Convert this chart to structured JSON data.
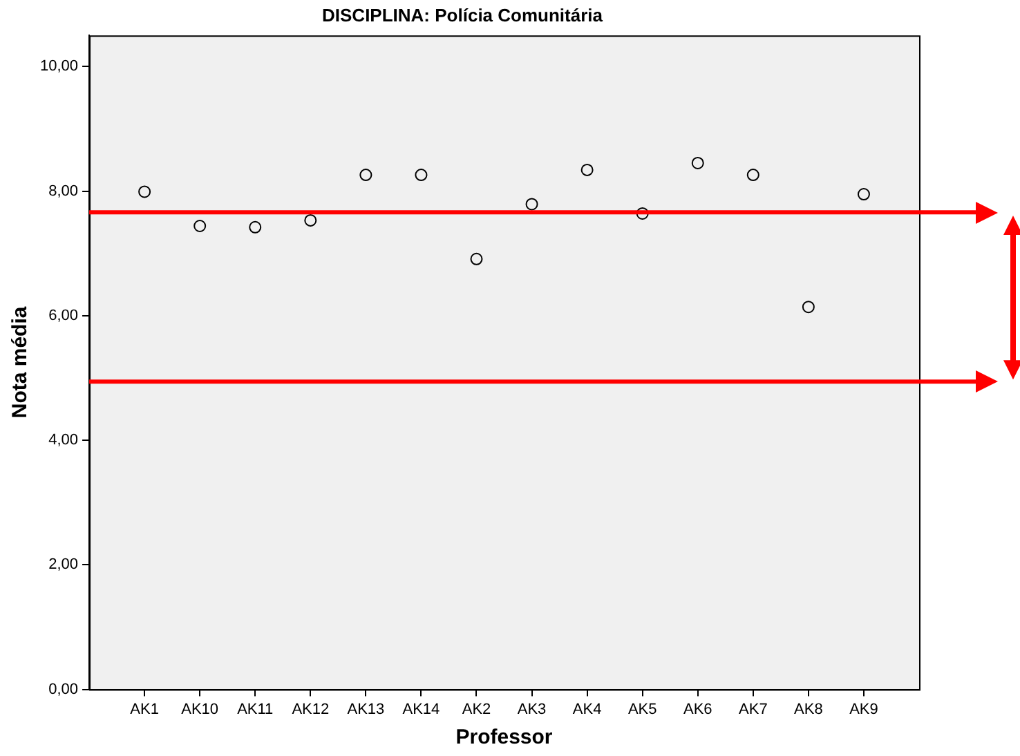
{
  "chart_data": {
    "type": "scatter",
    "title": "DISCIPLINA: Polícia Comunitária",
    "xlabel": "Professor",
    "ylabel": "Nota média",
    "categories": [
      "AK1",
      "AK10",
      "AK11",
      "AK12",
      "AK13",
      "AK14",
      "AK2",
      "AK3",
      "AK4",
      "AK5",
      "AK6",
      "AK7",
      "AK8",
      "AK9"
    ],
    "series": [
      {
        "color": "#000000",
        "values": [
          7.99,
          7.44,
          7.42,
          7.53,
          8.26,
          8.26,
          6.91,
          7.79,
          8.34,
          7.64,
          8.45,
          8.26,
          6.14,
          7.95
        ]
      }
    ],
    "ylim": [
      0,
      10.5
    ],
    "yticks": [
      {
        "value": 0,
        "label": "0,00"
      },
      {
        "value": 2,
        "label": "2,00"
      },
      {
        "value": 4,
        "label": "4,00"
      },
      {
        "value": 6,
        "label": "6,00"
      },
      {
        "value": 8,
        "label": "8,00"
      },
      {
        "value": 10,
        "label": "10,00"
      }
    ],
    "ref_lines": [
      {
        "axis": "y",
        "value": 7.66,
        "color": "#ff0000"
      },
      {
        "axis": "y",
        "value": 4.94,
        "color": "#ff0000"
      }
    ],
    "marker": "circle",
    "grid": false,
    "legend": false
  }
}
